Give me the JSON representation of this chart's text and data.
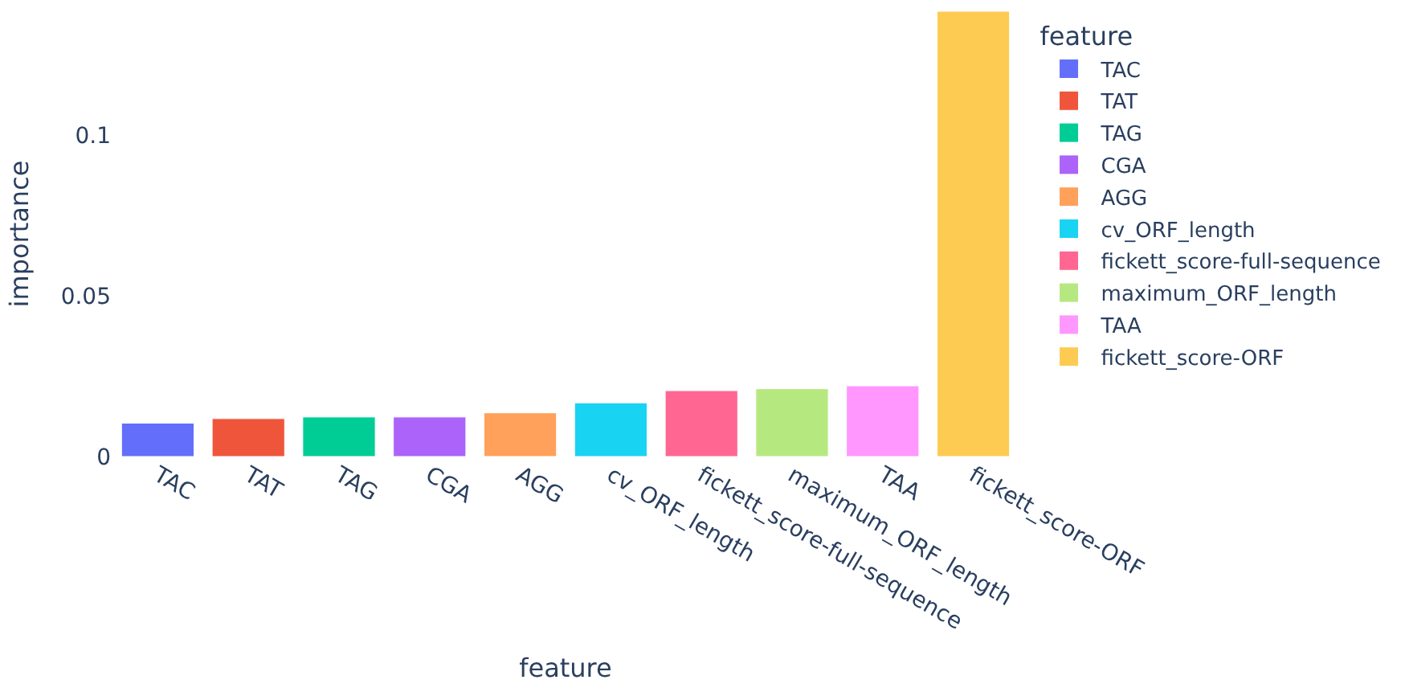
{
  "chart_data": {
    "type": "bar",
    "xlabel": "feature",
    "ylabel": "importance",
    "legend_title": "feature",
    "legend": "right",
    "categories": [
      "TAC",
      "TAT",
      "TAG",
      "CGA",
      "AGG",
      "cv_ORF_length",
      "fickett_score-full-sequence",
      "maximum_ORF_length",
      "TAA",
      "fickett_score-ORF"
    ],
    "series": [
      {
        "name": "TAC",
        "color": "#636efa",
        "values": [
          0.0104,
          null,
          null,
          null,
          null,
          null,
          null,
          null,
          null,
          null
        ]
      },
      {
        "name": "TAT",
        "color": "#ef553b",
        "values": [
          null,
          0.0118,
          null,
          null,
          null,
          null,
          null,
          null,
          null,
          null
        ]
      },
      {
        "name": "TAG",
        "color": "#00cc96",
        "values": [
          null,
          null,
          0.0123,
          null,
          null,
          null,
          null,
          null,
          null,
          null
        ]
      },
      {
        "name": "CGA",
        "color": "#ab63fa",
        "values": [
          null,
          null,
          null,
          0.0123,
          null,
          null,
          null,
          null,
          null,
          null
        ]
      },
      {
        "name": "AGG",
        "color": "#ffa15a",
        "values": [
          null,
          null,
          null,
          null,
          0.0136,
          null,
          null,
          null,
          null,
          null
        ]
      },
      {
        "name": "cv_ORF_length",
        "color": "#19d3f3",
        "values": [
          null,
          null,
          null,
          null,
          null,
          0.0167,
          null,
          null,
          null,
          null
        ]
      },
      {
        "name": "fickett_score-full-sequence",
        "color": "#ff6692",
        "values": [
          null,
          null,
          null,
          null,
          null,
          null,
          0.0205,
          null,
          null,
          null
        ]
      },
      {
        "name": "maximum_ORF_length",
        "color": "#b6e880",
        "values": [
          null,
          null,
          null,
          null,
          null,
          null,
          null,
          0.0211,
          null,
          null
        ]
      },
      {
        "name": "TAA",
        "color": "#ff97ff",
        "values": [
          null,
          null,
          null,
          null,
          null,
          null,
          null,
          null,
          0.022,
          null
        ]
      },
      {
        "name": "fickett_score-ORF",
        "color": "#fecb52",
        "values": [
          null,
          null,
          null,
          null,
          null,
          null,
          null,
          null,
          null,
          0.1386
        ]
      }
    ],
    "ylim": [
      0,
      0.1386
    ],
    "yticks": [
      0,
      0.05,
      0.1
    ]
  }
}
